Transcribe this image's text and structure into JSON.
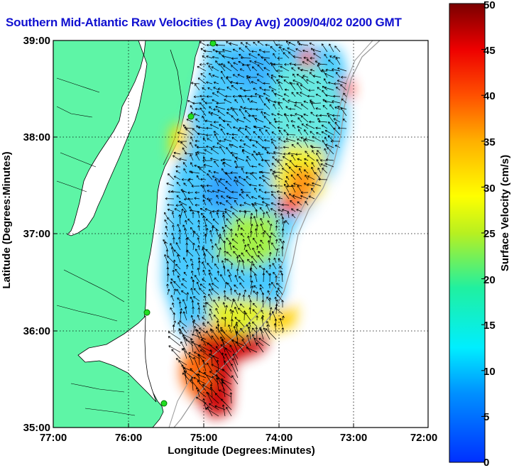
{
  "title": "Southern Mid-Atlantic Raw Velocities (1 Day Avg) 2009/04/02 0200 GMT",
  "xlabel": "Longitude (Degrees:Minutes)",
  "ylabel": "Latitude (Degrees:Minutes)",
  "colorbar_label": "Surface Velocity (cm/s)",
  "lon_ticks": [
    "77:00",
    "76:00",
    "75:00",
    "74:00",
    "73:00",
    "72:00"
  ],
  "lat_ticks": [
    "39:00",
    "38:00",
    "37:00",
    "36:00",
    "35:00"
  ],
  "colorbar_ticks": [
    "0",
    "5",
    "10",
    "15",
    "20",
    "25",
    "30",
    "35",
    "40",
    "45",
    "50"
  ],
  "colors": {
    "land": "#5ef5a6",
    "title": "#1010d0",
    "stations": "#22dd22"
  },
  "chart_data": {
    "type": "heatmap",
    "lon_range": [
      -77,
      -72
    ],
    "lat_range": [
      35,
      39
    ],
    "value_range": [
      0,
      50
    ],
    "grid": true,
    "stations": [
      {
        "lon": -74.92,
        "lat": 38.98
      },
      {
        "lon": -75.1,
        "lat": 38.22
      },
      {
        "lon": -75.72,
        "lat": 36.2
      },
      {
        "lon": -75.48,
        "lat": 35.25
      }
    ],
    "current_vectors": "surface current arrows over the shaded velocity field"
  }
}
